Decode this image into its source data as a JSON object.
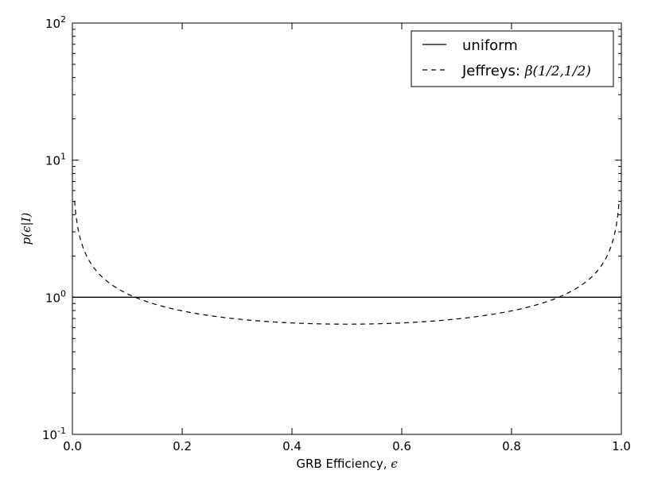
{
  "chart_data": {
    "type": "line",
    "xlabel": "GRB Efficiency, ",
    "xlabel_symbol": "ϵ",
    "ylabel": "p(ϵ|I)",
    "xlim": [
      0.0,
      1.0
    ],
    "ylim": [
      0.1,
      100
    ],
    "yscale": "log",
    "grid": false,
    "legend_position": "top-right",
    "x_ticks": [
      "0.0",
      "0.2",
      "0.4",
      "0.6",
      "0.8",
      "1.0"
    ],
    "y_ticks": [
      {
        "base": "10",
        "exp": "-1"
      },
      {
        "base": "10",
        "exp": "0"
      },
      {
        "base": "10",
        "exp": "1"
      },
      {
        "base": "10",
        "exp": "2"
      }
    ],
    "series": [
      {
        "name": "uniform",
        "style": "solid",
        "color": "#000000",
        "x": [
          0.0,
          1.0
        ],
        "y": [
          1.0,
          1.0
        ]
      },
      {
        "name": "Jeffreys: ",
        "name_math": "β(1/2,1/2)",
        "style": "dashed",
        "color": "#000000",
        "function": "1/(pi*sqrt(x*(1-x)))",
        "x": [
          0.001,
          0.01,
          0.05,
          0.1,
          0.2,
          0.3,
          0.4,
          0.5,
          0.6,
          0.7,
          0.8,
          0.9,
          0.95,
          0.99,
          0.999
        ],
        "y": [
          10.07,
          3.2,
          1.46,
          1.06,
          0.8,
          0.69,
          0.65,
          0.64,
          0.65,
          0.69,
          0.8,
          1.06,
          1.46,
          3.2,
          10.07
        ]
      }
    ]
  }
}
